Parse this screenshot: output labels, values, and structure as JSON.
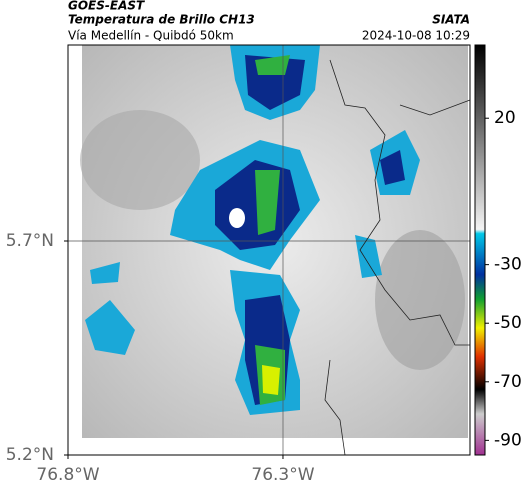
{
  "header": {
    "source": "GOES-EAST",
    "product": "Temperatura de Brillo CH13",
    "agency": "SIATA",
    "route": "Vía Medellín - Quibdó 50km",
    "timestamp": "2024-10-08 10:29"
  },
  "map": {
    "xlim": [
      -76.8,
      -75.865
    ],
    "ylim": [
      5.2,
      6.158
    ],
    "xticks": [
      {
        "value": -76.8,
        "label": "76.8°W"
      },
      {
        "value": -76.3,
        "label": "76.3°W"
      }
    ],
    "yticks": [
      {
        "value": 5.7,
        "label": "5.7°N"
      },
      {
        "value": 5.2,
        "label": "5.2°N"
      }
    ]
  },
  "colorbar": {
    "lim": [
      -95,
      45
    ],
    "ticks": [
      20,
      -30,
      -50,
      -70,
      -90
    ]
  }
}
